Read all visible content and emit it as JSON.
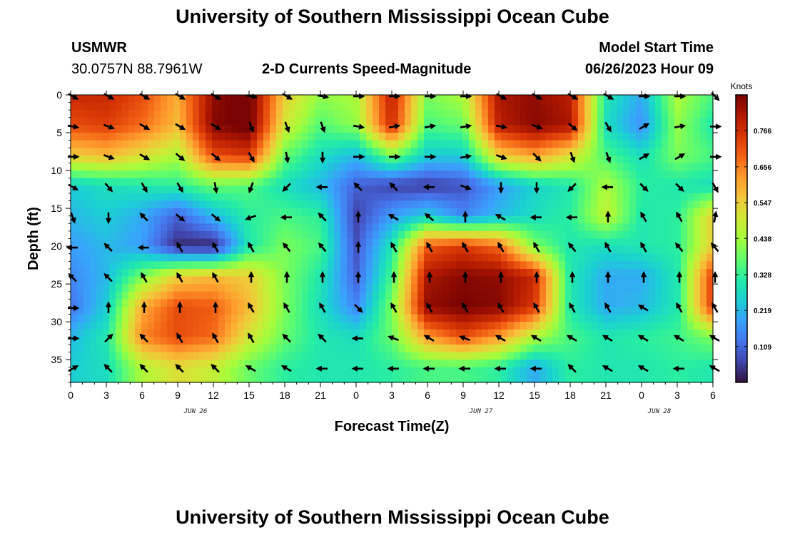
{
  "page": {
    "title_top": "University of Southern Mississippi Ocean Cube",
    "title_bottom": "University of Southern Mississippi Ocean Cube",
    "station": "USMWR",
    "coords": "30.0757N  88.7961W",
    "chart_title": "2-D Currents Speed-Magnitude",
    "model_label": "Model Start Time",
    "model_time": "06/26/2023 Hour 09"
  },
  "chart_data": {
    "type": "heatmap",
    "title": "2-D Currents Speed-Magnitude",
    "xlabel": "Forecast Time(Z)",
    "ylabel": "Depth (ft)",
    "x_hours_range": [
      0,
      54
    ],
    "y_range": [
      0,
      38
    ],
    "y_inverted": true,
    "x_ticks_hours": [
      0,
      3,
      6,
      9,
      12,
      15,
      18,
      21,
      24,
      27,
      30,
      33,
      36,
      39,
      42,
      45,
      48,
      51,
      54
    ],
    "x_tick_labels": [
      "0",
      "3",
      "6",
      "9",
      "12",
      "15",
      "18",
      "21",
      "0",
      "3",
      "6",
      "9",
      "12",
      "15",
      "18",
      "21",
      "0",
      "3",
      "6"
    ],
    "y_ticks": [
      0,
      5,
      10,
      15,
      20,
      25,
      30,
      35
    ],
    "y_tick_labels": [
      "0",
      "5",
      "10",
      "15",
      "20",
      "25",
      "30",
      "35"
    ],
    "day_labels": [
      {
        "hour": 10.5,
        "text": "JUN 26"
      },
      {
        "hour": 34.5,
        "text": "JUN 27"
      },
      {
        "hour": 49.5,
        "text": "JUN 28"
      }
    ],
    "colorbar": {
      "unit": "Knots",
      "range": [
        0,
        0.875
      ],
      "ticks": [
        0.109,
        0.219,
        0.328,
        0.438,
        0.547,
        0.656,
        0.766
      ],
      "tick_labels": [
        "0.109",
        "0.219",
        "0.328",
        "0.438",
        "0.547",
        "0.656",
        "0.766"
      ],
      "colormap": [
        "#30123b",
        "#4145ab",
        "#4675ed",
        "#39a2fc",
        "#1bcfd4",
        "#24eca6",
        "#61fc6c",
        "#a4fc3b",
        "#d1e834",
        "#f3c63a",
        "#fe9b2d",
        "#f36315",
        "#d93806",
        "#b11901",
        "#7a0403"
      ]
    },
    "speed_depths_ft": [
      0,
      4,
      8,
      12,
      16,
      20,
      24,
      28,
      32,
      36
    ],
    "speed_hours": [
      0,
      3,
      6,
      9,
      12,
      15,
      18,
      21,
      24,
      27,
      30,
      33,
      36,
      39,
      42,
      45,
      48,
      51,
      54
    ],
    "speed_knots": [
      [
        0.78,
        0.78,
        0.72,
        0.6,
        0.85,
        0.9,
        0.55,
        0.42,
        0.45,
        0.8,
        0.4,
        0.45,
        0.82,
        0.85,
        0.8,
        0.3,
        0.2,
        0.45,
        0.35
      ],
      [
        0.72,
        0.74,
        0.68,
        0.58,
        0.86,
        0.9,
        0.5,
        0.36,
        0.42,
        0.78,
        0.35,
        0.38,
        0.8,
        0.86,
        0.82,
        0.28,
        0.16,
        0.42,
        0.3
      ],
      [
        0.55,
        0.58,
        0.52,
        0.45,
        0.72,
        0.75,
        0.38,
        0.28,
        0.22,
        0.4,
        0.25,
        0.25,
        0.55,
        0.62,
        0.52,
        0.35,
        0.28,
        0.4,
        0.35
      ],
      [
        0.25,
        0.28,
        0.3,
        0.32,
        0.38,
        0.36,
        0.28,
        0.22,
        0.1,
        0.06,
        0.05,
        0.08,
        0.18,
        0.26,
        0.3,
        0.45,
        0.32,
        0.3,
        0.28
      ],
      [
        0.22,
        0.25,
        0.2,
        0.1,
        0.22,
        0.32,
        0.35,
        0.32,
        0.06,
        0.18,
        0.25,
        0.15,
        0.22,
        0.28,
        0.32,
        0.48,
        0.3,
        0.32,
        0.55
      ],
      [
        0.18,
        0.22,
        0.18,
        0.03,
        0.02,
        0.3,
        0.4,
        0.35,
        0.08,
        0.3,
        0.7,
        0.75,
        0.68,
        0.4,
        0.3,
        0.28,
        0.3,
        0.32,
        0.55
      ],
      [
        0.15,
        0.22,
        0.4,
        0.55,
        0.58,
        0.55,
        0.4,
        0.3,
        0.1,
        0.35,
        0.82,
        0.86,
        0.85,
        0.78,
        0.3,
        0.2,
        0.2,
        0.3,
        0.75
      ],
      [
        0.12,
        0.25,
        0.6,
        0.72,
        0.7,
        0.58,
        0.4,
        0.28,
        0.15,
        0.4,
        0.85,
        0.88,
        0.86,
        0.75,
        0.3,
        0.2,
        0.22,
        0.3,
        0.75
      ],
      [
        0.22,
        0.3,
        0.65,
        0.72,
        0.68,
        0.5,
        0.38,
        0.3,
        0.28,
        0.38,
        0.62,
        0.72,
        0.62,
        0.45,
        0.35,
        0.3,
        0.32,
        0.34,
        0.4
      ],
      [
        0.25,
        0.28,
        0.45,
        0.52,
        0.48,
        0.38,
        0.32,
        0.3,
        0.3,
        0.32,
        0.35,
        0.35,
        0.32,
        0.2,
        0.32,
        0.3,
        0.3,
        0.32,
        0.3
      ]
    ],
    "arrow_depths_ft": [
      0,
      4,
      8,
      12,
      16,
      20,
      24,
      28,
      32,
      36
    ],
    "arrow_hours": [
      0,
      3,
      6,
      9,
      12,
      15,
      18,
      21,
      24,
      27,
      30,
      33,
      36,
      39,
      42,
      45,
      48,
      51,
      54
    ],
    "arrow_directions_deg": [
      [
        120,
        120,
        120,
        120,
        120,
        100,
        120,
        100,
        90,
        90,
        90,
        90,
        120,
        120,
        120,
        120,
        90,
        90,
        135
      ],
      [
        100,
        110,
        120,
        120,
        120,
        160,
        160,
        160,
        100,
        80,
        80,
        80,
        100,
        110,
        130,
        150,
        60,
        80,
        90
      ],
      [
        90,
        110,
        120,
        130,
        130,
        150,
        170,
        180,
        90,
        90,
        90,
        80,
        110,
        135,
        160,
        160,
        60,
        60,
        90
      ],
      [
        120,
        140,
        150,
        150,
        170,
        200,
        225,
        270,
        315,
        315,
        270,
        110,
        180,
        180,
        225,
        270,
        135,
        135,
        150
      ],
      [
        160,
        180,
        315,
        130,
        130,
        250,
        270,
        315,
        0,
        300,
        310,
        0,
        300,
        270,
        270,
        0,
        330,
        330,
        10
      ],
      [
        270,
        315,
        270,
        330,
        330,
        330,
        320,
        320,
        0,
        330,
        330,
        330,
        330,
        330,
        320,
        330,
        330,
        320,
        320
      ],
      [
        315,
        315,
        330,
        330,
        330,
        0,
        0,
        0,
        0,
        0,
        0,
        0,
        0,
        0,
        0,
        0,
        0,
        0,
        0
      ],
      [
        90,
        0,
        0,
        0,
        0,
        330,
        330,
        330,
        135,
        330,
        330,
        330,
        330,
        330,
        330,
        330,
        300,
        330,
        330
      ],
      [
        90,
        45,
        315,
        330,
        330,
        330,
        315,
        315,
        270,
        290,
        300,
        290,
        300,
        300,
        300,
        300,
        300,
        300,
        300
      ],
      [
        60,
        315,
        315,
        315,
        315,
        300,
        300,
        270,
        270,
        270,
        270,
        270,
        270,
        270,
        315,
        300,
        300,
        270,
        300
      ]
    ]
  }
}
